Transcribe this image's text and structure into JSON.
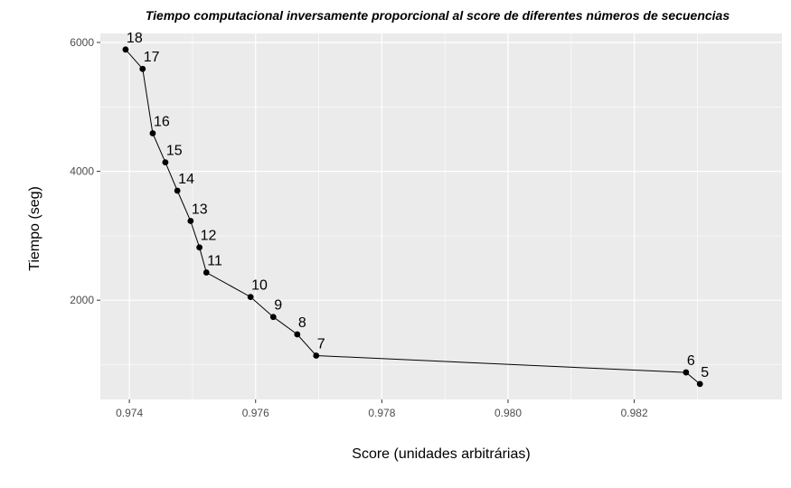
{
  "chart_data": {
    "type": "line",
    "title": "Tiempo computacional inversamente proporcional al score de diferentes números de secuencias",
    "xlabel": "Score (unidades arbitrárias)",
    "ylabel": "Tiempo (seg)",
    "xlim": [
      0.97354,
      0.98434
    ],
    "ylim": [
      460,
      6140
    ],
    "xticks": [
      0.974,
      0.976,
      0.978,
      0.98,
      0.982
    ],
    "yticks": [
      2000,
      4000,
      6000
    ],
    "x_minor_ticks": [
      0.975,
      0.977,
      0.979,
      0.981,
      0.983
    ],
    "y_minor_ticks": [
      1000,
      3000,
      5000
    ],
    "xtick_labels": [
      "0.974",
      "0.976",
      "0.978",
      "0.980",
      "0.982"
    ],
    "ytick_labels": [
      "2000",
      "4000",
      "6000"
    ],
    "grid": true,
    "panel_background": "#ebebeb",
    "grid_color": "#ffffff",
    "line_color": "#000000",
    "point_color": "#000000",
    "points": [
      {
        "label": "18",
        "x": 0.97394,
        "y": 5890
      },
      {
        "label": "17",
        "x": 0.97421,
        "y": 5590
      },
      {
        "label": "16",
        "x": 0.97437,
        "y": 4590
      },
      {
        "label": "15",
        "x": 0.97457,
        "y": 4140
      },
      {
        "label": "14",
        "x": 0.97476,
        "y": 3700
      },
      {
        "label": "13",
        "x": 0.97497,
        "y": 3230
      },
      {
        "label": "12",
        "x": 0.97511,
        "y": 2820
      },
      {
        "label": "11",
        "x": 0.97522,
        "y": 2430
      },
      {
        "label": "10",
        "x": 0.97592,
        "y": 2050
      },
      {
        "label": "9",
        "x": 0.97628,
        "y": 1740
      },
      {
        "label": "8",
        "x": 0.97666,
        "y": 1470
      },
      {
        "label": "7",
        "x": 0.97696,
        "y": 1140
      },
      {
        "label": "6",
        "x": 0.98282,
        "y": 880
      },
      {
        "label": "5",
        "x": 0.98304,
        "y": 700
      }
    ]
  }
}
